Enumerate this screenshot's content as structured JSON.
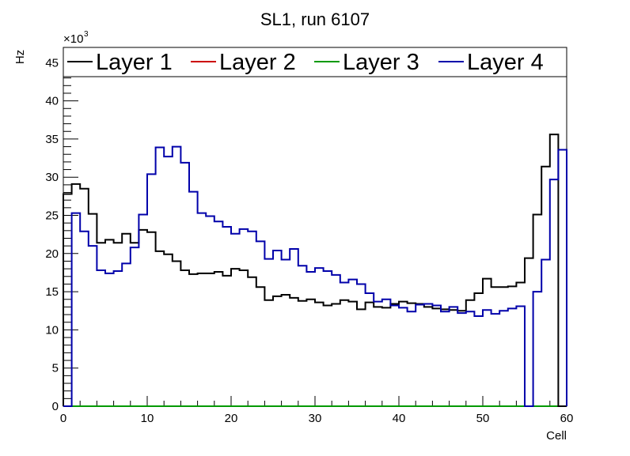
{
  "chart_data": {
    "type": "line",
    "title": "SL1, run 6107",
    "xlabel": "Cell",
    "ylabel": "Hz",
    "y_exponent": "×10",
    "y_exponent_power": "3",
    "xlim": [
      0,
      60
    ],
    "ylim": [
      0,
      47
    ],
    "x_ticks": [
      0,
      10,
      20,
      30,
      40,
      50,
      60
    ],
    "y_ticks": [
      0,
      5,
      10,
      15,
      20,
      25,
      30,
      35,
      40,
      45
    ],
    "legend": "top",
    "bin_edges_start": 0,
    "bin_width": 1,
    "series": [
      {
        "name": "Layer 1",
        "color": "#000000",
        "values": [
          27.8,
          29.1,
          28.5,
          25.2,
          21.4,
          21.8,
          21.4,
          22.6,
          21.4,
          23.1,
          22.8,
          20.3,
          19.9,
          19.0,
          17.8,
          17.3,
          17.4,
          17.4,
          17.6,
          17.1,
          18.0,
          17.8,
          16.9,
          15.6,
          13.9,
          14.4,
          14.6,
          14.2,
          13.8,
          14.0,
          13.6,
          13.2,
          13.4,
          13.9,
          13.7,
          12.7,
          13.6,
          13.0,
          12.9,
          13.4,
          13.7,
          13.5,
          13.4,
          13.0,
          12.8,
          12.7,
          12.6,
          12.5,
          13.9,
          14.8,
          16.7,
          15.6,
          15.6,
          15.7,
          16.2,
          19.4,
          25.1,
          31.4,
          35.6,
          0
        ],
        "visible_in_plot": true
      },
      {
        "name": "Layer 2",
        "color": "#cc0000",
        "values": [
          0,
          0,
          0,
          0,
          0,
          0,
          0,
          0,
          0,
          0,
          0,
          0,
          0,
          0,
          0,
          0,
          0,
          0,
          0,
          0,
          0,
          0,
          0,
          0,
          0,
          0,
          0,
          0,
          0,
          0,
          0,
          0,
          0,
          0,
          0,
          0,
          0,
          0,
          0,
          0,
          0,
          0,
          0,
          0,
          0,
          0,
          0,
          0,
          0,
          0,
          0,
          0,
          0,
          0,
          0,
          0,
          0,
          0,
          0,
          0
        ],
        "visible_in_plot": true
      },
      {
        "name": "Layer 3",
        "color": "#009900",
        "values": [
          0,
          0,
          0,
          0,
          0,
          0,
          0,
          0,
          0,
          0,
          0,
          0,
          0,
          0,
          0,
          0,
          0,
          0,
          0,
          0,
          0,
          0,
          0,
          0,
          0,
          0,
          0,
          0,
          0,
          0,
          0,
          0,
          0,
          0,
          0,
          0,
          0,
          0,
          0,
          0,
          0,
          0,
          0,
          0,
          0,
          0,
          0,
          0,
          0,
          0,
          0,
          0,
          0,
          0,
          0,
          0,
          0,
          0,
          0,
          0
        ],
        "visible_in_plot": true
      },
      {
        "name": "Layer 4",
        "color": "#0000aa",
        "values": [
          0,
          25.3,
          22.9,
          21.0,
          17.8,
          17.4,
          17.7,
          18.7,
          20.8,
          25.1,
          30.4,
          33.9,
          32.7,
          34.0,
          31.9,
          28.1,
          25.3,
          24.9,
          24.2,
          23.5,
          22.6,
          23.2,
          22.9,
          21.6,
          19.3,
          20.4,
          19.2,
          20.6,
          18.4,
          17.6,
          18.1,
          17.7,
          17.2,
          16.2,
          16.6,
          16.0,
          14.8,
          13.7,
          14.0,
          13.2,
          12.9,
          12.4,
          13.3,
          13.4,
          13.2,
          12.4,
          13.0,
          12.2,
          12.4,
          11.8,
          12.6,
          12.1,
          12.5,
          12.8,
          13.1,
          0,
          15.0,
          19.2,
          29.7,
          33.6
        ],
        "visible_in_plot": true
      }
    ]
  }
}
